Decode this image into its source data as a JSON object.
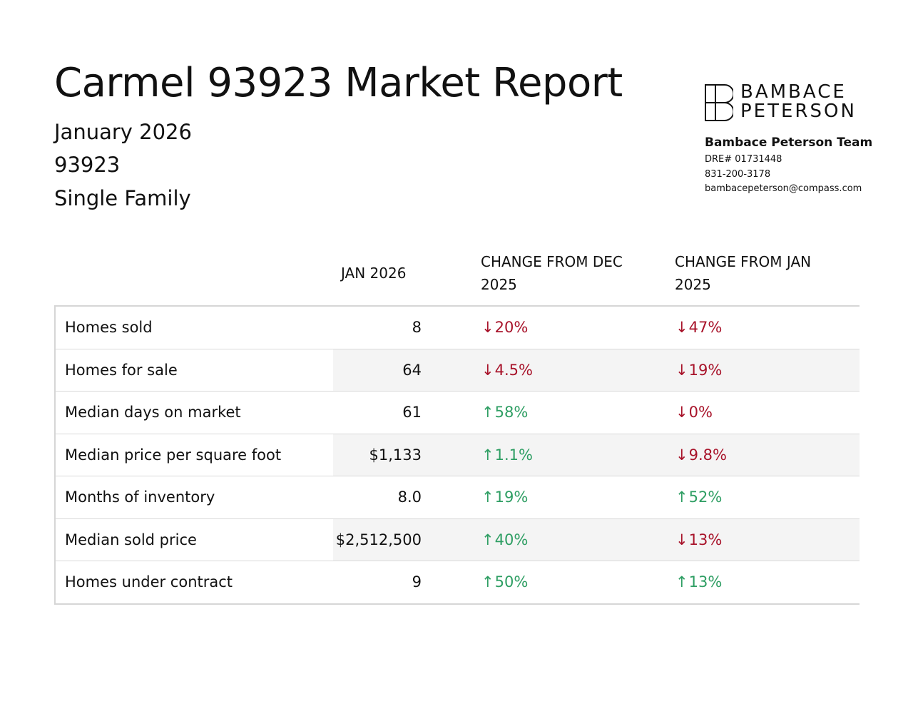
{
  "header": {
    "title": "Carmel 93923 Market Report",
    "period": "January 2026",
    "zip": "93923",
    "property_type": "Single Family"
  },
  "brand": {
    "logo_line1": "BAMBACE",
    "logo_line2": "PETERSON",
    "team_name": "Bambace Peterson Team",
    "dre": "DRE# 01731448",
    "phone": "831-200-3178",
    "email": "bambacepeterson@compass.com"
  },
  "table": {
    "headers": {
      "current": "JAN 2026",
      "change_prev": "CHANGE FROM DEC 2025",
      "change_year": "CHANGE FROM JAN 2025"
    },
    "rows": [
      {
        "label": "Homes sold",
        "value": "8",
        "chg1": "20%",
        "chg1_dir": "down",
        "chg2": "47%",
        "chg2_dir": "down"
      },
      {
        "label": "Homes for sale",
        "value": "64",
        "chg1": "4.5%",
        "chg1_dir": "down",
        "chg2": "19%",
        "chg2_dir": "down"
      },
      {
        "label": "Median days on market",
        "value": "61",
        "chg1": "58%",
        "chg1_dir": "up",
        "chg2": "0%",
        "chg2_dir": "down"
      },
      {
        "label": "Median price per square foot",
        "value": "$1,133",
        "chg1": "1.1%",
        "chg1_dir": "up",
        "chg2": "9.8%",
        "chg2_dir": "down"
      },
      {
        "label": "Months of inventory",
        "value": "8.0",
        "chg1": "19%",
        "chg1_dir": "up",
        "chg2": "52%",
        "chg2_dir": "up"
      },
      {
        "label": "Median sold price",
        "value": "$2,512,500",
        "chg1": "40%",
        "chg1_dir": "up",
        "chg2": "13%",
        "chg2_dir": "down"
      },
      {
        "label": "Homes under contract",
        "value": "9",
        "chg1": "50%",
        "chg1_dir": "up",
        "chg2": "13%",
        "chg2_dir": "up"
      }
    ]
  },
  "colors": {
    "up": "#2e9e63",
    "down": "#a8132a"
  }
}
